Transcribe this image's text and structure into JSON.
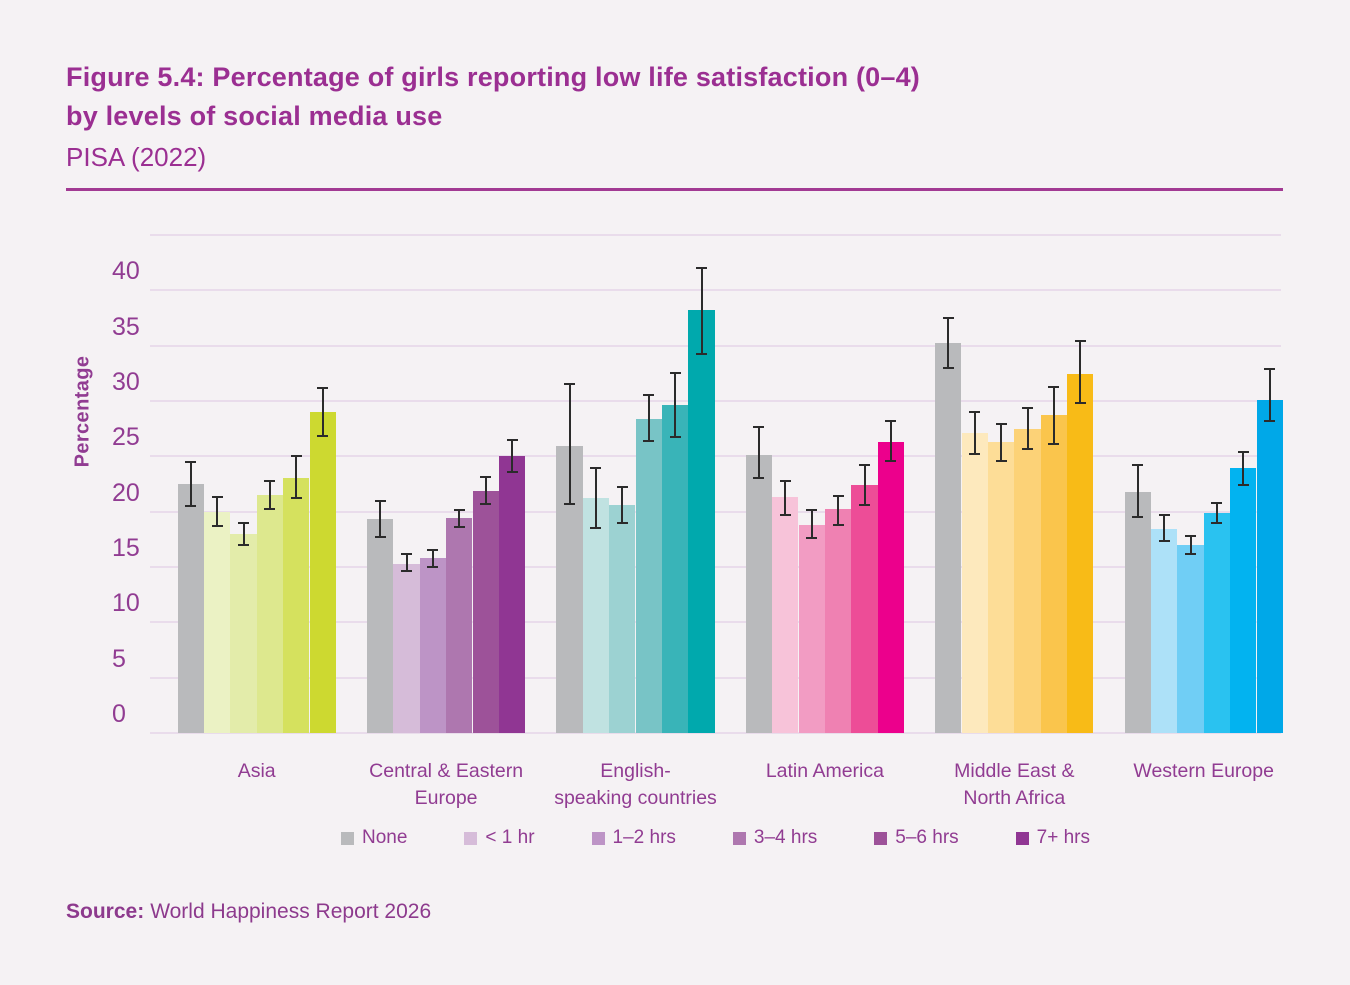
{
  "header": {
    "title_line1": "Figure 5.4: Percentage of girls reporting low life satisfaction (0–4)",
    "title_line2": "by levels of social media use",
    "subtitle": "PISA (2022)"
  },
  "footer": {
    "source_label": "Source:",
    "source_text": "World Happiness Report 2026"
  },
  "colors": {
    "background": "#f5f2f4",
    "title_purple": "#9b2f92",
    "axis_text_purple": "#913c92",
    "gridline": "#e9dceb",
    "error_bar": "#2b2b2b",
    "none_gray": "#b9babc"
  },
  "chart_data": {
    "type": "bar",
    "title": "Percentage of girls reporting low life satisfaction (0–4) by levels of social media use, PISA (2022)",
    "xlabel": "",
    "ylabel": "Percentage",
    "ylim": [
      0,
      45
    ],
    "yticks": [
      0,
      5,
      10,
      15,
      20,
      25,
      30,
      35,
      40
    ],
    "gridlines": [
      0,
      5,
      10,
      15,
      20,
      25,
      30,
      35,
      40,
      45
    ],
    "grid": true,
    "error_bars": true,
    "legend_position": "bottom",
    "levels": [
      "None",
      "< 1 hr",
      "1–2 hrs",
      "3–4 hrs",
      "5–6 hrs",
      "7+ hrs"
    ],
    "legend": [
      {
        "label": "None",
        "color": "#b9babc"
      },
      {
        "label": "< 1 hr",
        "color": "#d6bcd9"
      },
      {
        "label": "1–2 hrs",
        "color": "#bd94c6"
      },
      {
        "label": "3–4 hrs",
        "color": "#ae77af"
      },
      {
        "label": "5–6 hrs",
        "color": "#9d5299"
      },
      {
        "label": "7+ hrs",
        "color": "#903693"
      }
    ],
    "groups": [
      {
        "label": "Asia",
        "bars": [
          {
            "level": "None",
            "value": 22.5,
            "err_lo": 20.5,
            "err_hi": 24.5,
            "color": "#b9babc"
          },
          {
            "level": "< 1 hr",
            "value": 20.0,
            "err_lo": 18.7,
            "err_hi": 21.3,
            "color": "#ebf2c4"
          },
          {
            "level": "1–2 hrs",
            "value": 18.0,
            "err_lo": 17.0,
            "err_hi": 19.0,
            "color": "#e3ecaa"
          },
          {
            "level": "3–4 hrs",
            "value": 21.5,
            "err_lo": 20.2,
            "err_hi": 22.8,
            "color": "#dde88e"
          },
          {
            "level": "5–6 hrs",
            "value": 23.0,
            "err_lo": 21.2,
            "err_hi": 25.0,
            "color": "#d5e15e"
          },
          {
            "level": "7+ hrs",
            "value": 29.0,
            "err_lo": 26.8,
            "err_hi": 31.2,
            "color": "#cdd930"
          }
        ]
      },
      {
        "label": "Central & Eastern\nEurope",
        "bars": [
          {
            "level": "None",
            "value": 19.3,
            "err_lo": 17.7,
            "err_hi": 21.0,
            "color": "#b9babc"
          },
          {
            "level": "< 1 hr",
            "value": 15.3,
            "err_lo": 14.6,
            "err_hi": 16.2,
            "color": "#d6bcd9"
          },
          {
            "level": "1–2 hrs",
            "value": 15.8,
            "err_lo": 15.0,
            "err_hi": 16.5,
            "color": "#bd94c6"
          },
          {
            "level": "3–4 hrs",
            "value": 19.4,
            "err_lo": 18.6,
            "err_hi": 20.1,
            "color": "#ae77af"
          },
          {
            "level": "5–6 hrs",
            "value": 21.9,
            "err_lo": 20.7,
            "err_hi": 23.1,
            "color": "#9d5299"
          },
          {
            "level": "7+ hrs",
            "value": 25.0,
            "err_lo": 23.6,
            "err_hi": 26.5,
            "color": "#903693"
          }
        ]
      },
      {
        "label": "English-\nspeaking countries",
        "bars": [
          {
            "level": "None",
            "value": 25.9,
            "err_lo": 20.7,
            "err_hi": 31.5,
            "color": "#b9babc"
          },
          {
            "level": "< 1 hr",
            "value": 21.2,
            "err_lo": 18.5,
            "err_hi": 23.9,
            "color": "#c0e2e1"
          },
          {
            "level": "1–2 hrs",
            "value": 20.6,
            "err_lo": 19.0,
            "err_hi": 22.2,
            "color": "#9cd2d2"
          },
          {
            "level": "3–4 hrs",
            "value": 28.4,
            "err_lo": 26.4,
            "err_hi": 30.5,
            "color": "#78c4c6"
          },
          {
            "level": "5–6 hrs",
            "value": 29.6,
            "err_lo": 26.7,
            "err_hi": 32.5,
            "color": "#39b4b8"
          },
          {
            "level": "7+ hrs",
            "value": 38.2,
            "err_lo": 34.2,
            "err_hi": 42.0,
            "color": "#00a9ad"
          }
        ]
      },
      {
        "label": "Latin America",
        "bars": [
          {
            "level": "None",
            "value": 25.1,
            "err_lo": 23.0,
            "err_hi": 27.6,
            "color": "#b9babc"
          },
          {
            "level": "< 1 hr",
            "value": 21.3,
            "err_lo": 19.7,
            "err_hi": 22.8,
            "color": "#f7c3d9"
          },
          {
            "level": "1–2 hrs",
            "value": 18.8,
            "err_lo": 17.6,
            "err_hi": 20.1,
            "color": "#f29cc3"
          },
          {
            "level": "3–4 hrs",
            "value": 20.2,
            "err_lo": 18.8,
            "err_hi": 21.4,
            "color": "#ef81b2"
          },
          {
            "level": "5–6 hrs",
            "value": 22.4,
            "err_lo": 20.6,
            "err_hi": 24.2,
            "color": "#ed4d97"
          },
          {
            "level": "7+ hrs",
            "value": 26.3,
            "err_lo": 24.6,
            "err_hi": 28.2,
            "color": "#ec008c"
          }
        ]
      },
      {
        "label": "Middle East &\nNorth Africa",
        "bars": [
          {
            "level": "None",
            "value": 35.2,
            "err_lo": 33.0,
            "err_hi": 37.5,
            "color": "#b9babc"
          },
          {
            "level": "< 1 hr",
            "value": 27.1,
            "err_lo": 25.2,
            "err_hi": 29.0,
            "color": "#fde9bd"
          },
          {
            "level": "1–2 hrs",
            "value": 26.3,
            "err_lo": 24.6,
            "err_hi": 27.9,
            "color": "#fddd97"
          },
          {
            "level": "3–4 hrs",
            "value": 27.5,
            "err_lo": 25.7,
            "err_hi": 29.4,
            "color": "#fcd277"
          },
          {
            "level": "5–6 hrs",
            "value": 28.7,
            "err_lo": 26.1,
            "err_hi": 31.3,
            "color": "#fac54c"
          },
          {
            "level": "7+ hrs",
            "value": 32.4,
            "err_lo": 29.8,
            "err_hi": 35.4,
            "color": "#f8bb17"
          }
        ]
      },
      {
        "label": "Western Europe",
        "bars": [
          {
            "level": "None",
            "value": 21.8,
            "err_lo": 19.5,
            "err_hi": 24.2,
            "color": "#b9babc"
          },
          {
            "level": "< 1 hr",
            "value": 18.4,
            "err_lo": 17.3,
            "err_hi": 19.7,
            "color": "#ade1f8"
          },
          {
            "level": "1–2 hrs",
            "value": 17.0,
            "err_lo": 16.2,
            "err_hi": 17.8,
            "color": "#70cef5"
          },
          {
            "level": "3–4 hrs",
            "value": 19.9,
            "err_lo": 19.0,
            "err_hi": 20.8,
            "color": "#2ac2f0"
          },
          {
            "level": "5–6 hrs",
            "value": 23.9,
            "err_lo": 22.4,
            "err_hi": 25.4,
            "color": "#02b3f0"
          },
          {
            "level": "7+ hrs",
            "value": 30.1,
            "err_lo": 28.2,
            "err_hi": 32.9,
            "color": "#00a8e8"
          }
        ]
      }
    ]
  }
}
